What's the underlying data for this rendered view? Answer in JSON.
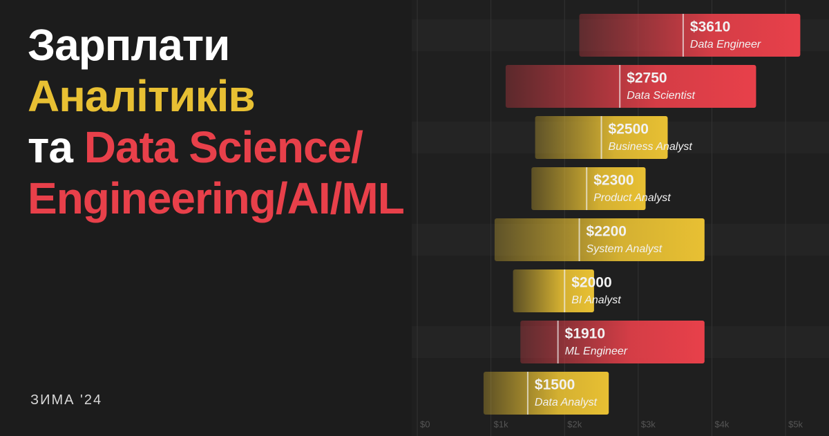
{
  "chart_data": {
    "type": "range_bar",
    "title_lines": [
      [
        {
          "text": "Зарплати",
          "color": "#ffffff"
        }
      ],
      [
        {
          "text": "Аналітиків",
          "color": "#e8c033"
        }
      ],
      [
        {
          "text": "та ",
          "color": "#ffffff"
        },
        {
          "text": "Data Science/",
          "color": "#e8404a"
        }
      ],
      [
        {
          "text": "Engineering/AI/ML",
          "color": "#e8404a"
        }
      ]
    ],
    "subtitle": "ЗИМА '24",
    "xlim": [
      0,
      5590
    ],
    "xticks": [
      {
        "value": 0,
        "label": "$0"
      },
      {
        "value": 1000,
        "label": "$1k"
      },
      {
        "value": 2000,
        "label": "$2k"
      },
      {
        "value": 3000,
        "label": "$3k"
      },
      {
        "value": 4000,
        "label": "$4k"
      },
      {
        "value": 5000,
        "label": "$5k"
      }
    ],
    "grid": true,
    "bars": [
      {
        "category": "Data Engineer",
        "low": 2200,
        "high": 5200,
        "median": 3610,
        "median_label": "$3610",
        "color": "#e8404a"
      },
      {
        "category": "Data Scientist",
        "low": 1200,
        "high": 4600,
        "median": 2750,
        "median_label": "$2750",
        "color": "#e8404a"
      },
      {
        "category": "Business Analyst",
        "low": 1600,
        "high": 3400,
        "median": 2500,
        "median_label": "$2500",
        "color": "#e8c033"
      },
      {
        "category": "Product Analyst",
        "low": 1550,
        "high": 3100,
        "median": 2300,
        "median_label": "$2300",
        "color": "#e8c033"
      },
      {
        "category": "System Analyst",
        "low": 1050,
        "high": 3900,
        "median": 2200,
        "median_label": "$2200",
        "color": "#e8c033"
      },
      {
        "category": "BI Analyst",
        "low": 1300,
        "high": 2400,
        "median": 2000,
        "median_label": "$2000",
        "color": "#e8c033"
      },
      {
        "category": "ML Engineer",
        "low": 1400,
        "high": 3900,
        "median": 1910,
        "median_label": "$1910",
        "color": "#e8404a"
      },
      {
        "category": "Data Analyst",
        "low": 900,
        "high": 2600,
        "median": 1500,
        "median_label": "$1500",
        "color": "#e8c033"
      }
    ]
  }
}
